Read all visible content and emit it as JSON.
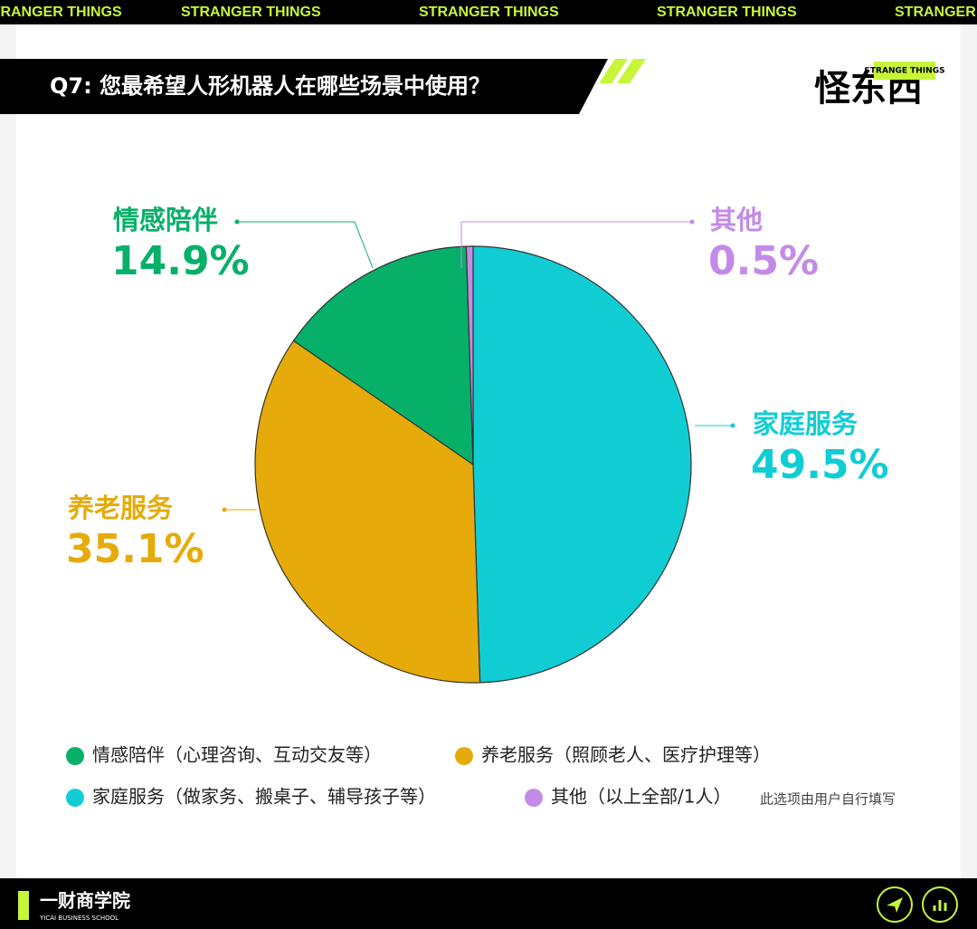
{
  "ticker": "STRANGER THINGS",
  "brand": {
    "logo": "怪东西",
    "logo_sub": "STRANGE THINGS",
    "footer": "一财商学院",
    "footer_sub": "YICAI BUSINESS SCHOOL"
  },
  "chart_data": {
    "type": "pie",
    "title": "Q7: 您最希望人形机器人在哪些场景中使用？",
    "categories": [
      "家庭服务",
      "养老服务",
      "情感陪伴",
      "其他"
    ],
    "values": [
      49.5,
      35.1,
      14.9,
      0.5
    ],
    "value_labels": [
      "49.5%",
      "35.1%",
      "14.9%",
      "0.5%"
    ],
    "colors": [
      "#10cdd4",
      "#e6ab0a",
      "#07b069",
      "#c48ae8"
    ],
    "legend": [
      {
        "label": "情感陪伴（心理咨询、互动交友等）",
        "color": "#07b069"
      },
      {
        "label": "养老服务（照顾老人、医疗护理等）",
        "color": "#e6ab0a"
      },
      {
        "label": "家庭服务（做家务、搬桌子、辅导孩子等）",
        "color": "#10cdd4"
      },
      {
        "label": "其他（以上全部/1人）",
        "color": "#c48ae8"
      }
    ],
    "legend_note": "此选项由用户自行填写"
  }
}
